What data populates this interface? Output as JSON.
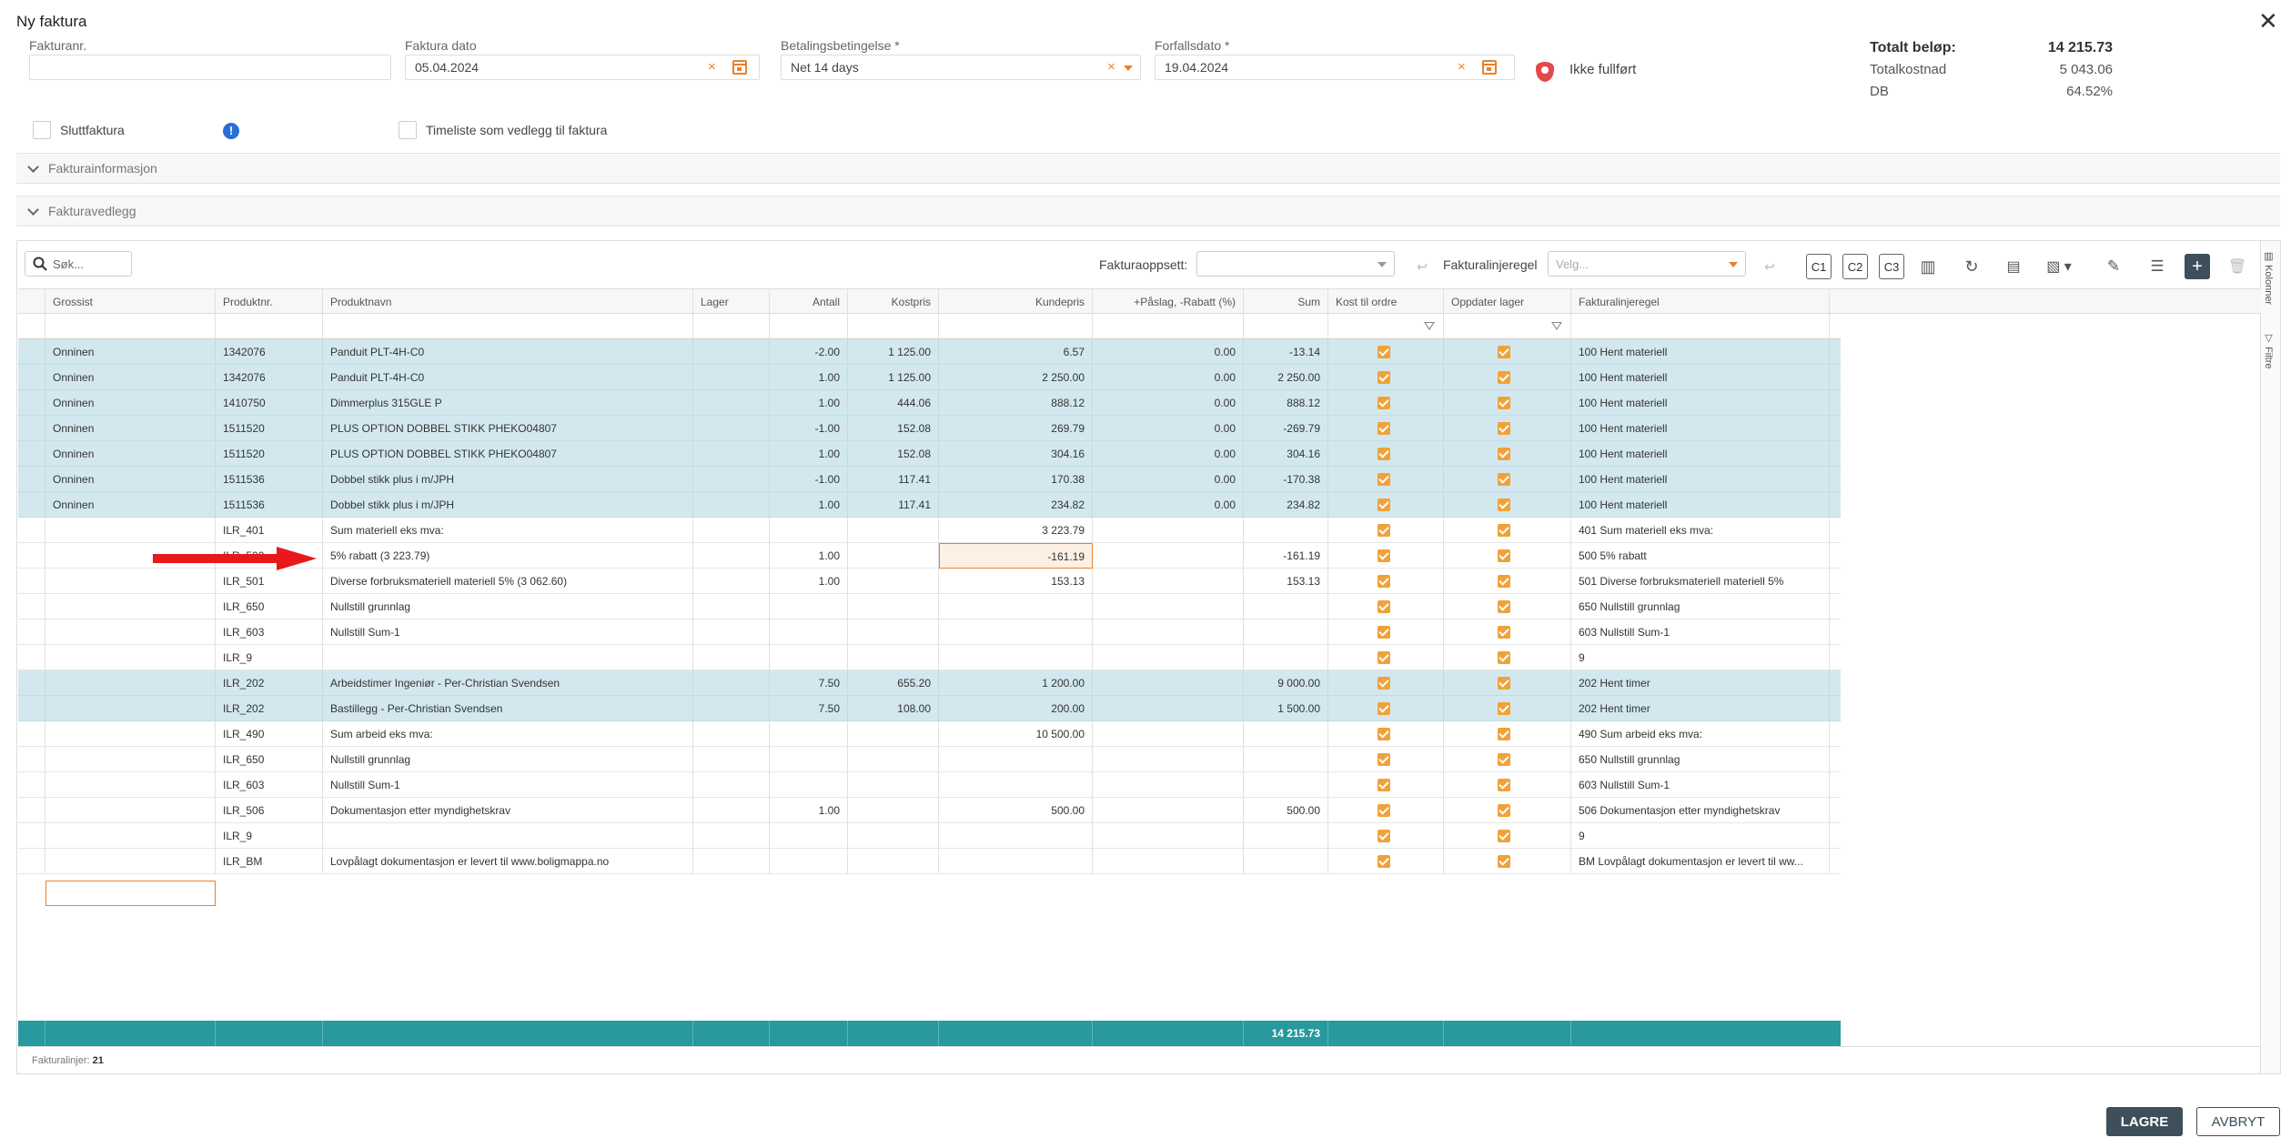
{
  "title": "Ny faktura",
  "fields": {
    "invoice_no_label": "Fakturanr.",
    "invoice_no_value": "",
    "invoice_date_label": "Faktura dato",
    "invoice_date_value": "05.04.2024",
    "payment_terms_label": "Betalingsbetingelse *",
    "payment_terms_value": "Net 14 days",
    "due_date_label": "Forfallsdato *",
    "due_date_value": "19.04.2024",
    "status_text": "Ikke fullført"
  },
  "totals": {
    "total_label": "Totalt beløp:",
    "total_value": "14 215.73",
    "cost_label": "Totalkostnad",
    "cost_value": "5 043.06",
    "db_label": "DB",
    "db_value": "64.52%"
  },
  "options": {
    "final_invoice_label": "Sluttfaktura",
    "info_glyph": "!",
    "timesheet_label": "Timeliste som vedlegg til faktura"
  },
  "sections": {
    "invoice_info": "Fakturainformasjon",
    "attachments": "Fakturavedlegg"
  },
  "toolbar": {
    "search_placeholder": "Søk...",
    "setup_label": "Fakturaoppsett:",
    "rule_label": "Fakturalinjeregel",
    "rule_placeholder": "Velg...",
    "c1": "C1",
    "c2": "C2",
    "c3": "C3"
  },
  "side_tabs": {
    "columns": "Kolonner",
    "filters": "Filtre"
  },
  "columns": [
    "Grossist",
    "Produktnr.",
    "Produktnavn",
    "Lager",
    "Antall",
    "Kostpris",
    "Kundepris",
    "+Påslag, -Rabatt (%)",
    "Sum",
    "Kost til ordre",
    "Oppdater lager",
    "Fakturalinjeregel"
  ],
  "rows": [
    {
      "grossist": "Onninen",
      "produktnr": "1342076",
      "navn": "Panduit PLT-4H-C0",
      "antall": "-2.00",
      "kostpris": "1 125.00",
      "kundepris": "6.57",
      "rabatt": "0.00",
      "sum": "-13.14",
      "regel": "100 Hent materiell",
      "hl": true
    },
    {
      "grossist": "Onninen",
      "produktnr": "1342076",
      "navn": "Panduit PLT-4H-C0",
      "antall": "1.00",
      "kostpris": "1 125.00",
      "kundepris": "2 250.00",
      "rabatt": "0.00",
      "sum": "2 250.00",
      "regel": "100 Hent materiell",
      "hl": true
    },
    {
      "grossist": "Onninen",
      "produktnr": "1410750",
      "navn": "Dimmerplus 315GLE P",
      "antall": "1.00",
      "kostpris": "444.06",
      "kundepris": "888.12",
      "rabatt": "0.00",
      "sum": "888.12",
      "regel": "100 Hent materiell",
      "hl": true
    },
    {
      "grossist": "Onninen",
      "produktnr": "1511520",
      "navn": "PLUS OPTION DOBBEL STIKK PHEKO04807",
      "antall": "-1.00",
      "kostpris": "152.08",
      "kundepris": "269.79",
      "rabatt": "0.00",
      "sum": "-269.79",
      "regel": "100 Hent materiell",
      "hl": true
    },
    {
      "grossist": "Onninen",
      "produktnr": "1511520",
      "navn": "PLUS OPTION DOBBEL STIKK PHEKO04807",
      "antall": "1.00",
      "kostpris": "152.08",
      "kundepris": "304.16",
      "rabatt": "0.00",
      "sum": "304.16",
      "regel": "100 Hent materiell",
      "hl": true
    },
    {
      "grossist": "Onninen",
      "produktnr": "1511536",
      "navn": "Dobbel stikk plus i m/JPH",
      "antall": "-1.00",
      "kostpris": "117.41",
      "kundepris": "170.38",
      "rabatt": "0.00",
      "sum": "-170.38",
      "regel": "100 Hent materiell",
      "hl": true
    },
    {
      "grossist": "Onninen",
      "produktnr": "1511536",
      "navn": "Dobbel stikk plus i m/JPH",
      "antall": "1.00",
      "kostpris": "117.41",
      "kundepris": "234.82",
      "rabatt": "0.00",
      "sum": "234.82",
      "regel": "100 Hent materiell",
      "hl": true
    },
    {
      "grossist": "",
      "produktnr": "ILR_401",
      "navn": "Sum materiell eks mva:",
      "antall": "",
      "kostpris": "",
      "kundepris": "3 223.79",
      "rabatt": "",
      "sum": "",
      "regel": "401 Sum materiell eks mva:",
      "hl": false
    },
    {
      "grossist": "",
      "produktnr": "ILR_500",
      "navn": "5% rabatt (3 223.79)",
      "antall": "1.00",
      "kostpris": "",
      "kundepris": "-161.19",
      "rabatt": "",
      "sum": "-161.19",
      "regel": "500 5% rabatt",
      "hl": false,
      "sel": true
    },
    {
      "grossist": "",
      "produktnr": "ILR_501",
      "navn": "Diverse forbruksmateriell materiell 5% (3 062.60)",
      "antall": "1.00",
      "kostpris": "",
      "kundepris": "153.13",
      "rabatt": "",
      "sum": "153.13",
      "regel": "501 Diverse forbruksmateriell materiell 5%",
      "hl": false
    },
    {
      "grossist": "",
      "produktnr": "ILR_650",
      "navn": "Nullstill grunnlag",
      "antall": "",
      "kostpris": "",
      "kundepris": "",
      "rabatt": "",
      "sum": "",
      "regel": "650 Nullstill grunnlag",
      "hl": false
    },
    {
      "grossist": "",
      "produktnr": "ILR_603",
      "navn": "Nullstill Sum-1",
      "antall": "",
      "kostpris": "",
      "kundepris": "",
      "rabatt": "",
      "sum": "",
      "regel": "603 Nullstill Sum-1",
      "hl": false
    },
    {
      "grossist": "",
      "produktnr": "ILR_9",
      "navn": "",
      "antall": "",
      "kostpris": "",
      "kundepris": "",
      "rabatt": "",
      "sum": "",
      "regel": "9",
      "hl": false
    },
    {
      "grossist": "",
      "produktnr": "ILR_202",
      "navn": "Arbeidstimer Ingeniør - Per-Christian Svendsen",
      "antall": "7.50",
      "kostpris": "655.20",
      "kundepris": "1 200.00",
      "rabatt": "",
      "sum": "9 000.00",
      "regel": "202 Hent timer",
      "hl": true
    },
    {
      "grossist": "",
      "produktnr": "ILR_202",
      "navn": "Bastillegg - Per-Christian Svendsen",
      "antall": "7.50",
      "kostpris": "108.00",
      "kundepris": "200.00",
      "rabatt": "",
      "sum": "1 500.00",
      "regel": "202 Hent timer",
      "hl": true
    },
    {
      "grossist": "",
      "produktnr": "ILR_490",
      "navn": "Sum arbeid eks mva:",
      "antall": "",
      "kostpris": "",
      "kundepris": "10 500.00",
      "rabatt": "",
      "sum": "",
      "regel": "490 Sum arbeid eks mva:",
      "hl": false
    },
    {
      "grossist": "",
      "produktnr": "ILR_650",
      "navn": "Nullstill grunnlag",
      "antall": "",
      "kostpris": "",
      "kundepris": "",
      "rabatt": "",
      "sum": "",
      "regel": "650 Nullstill grunnlag",
      "hl": false
    },
    {
      "grossist": "",
      "produktnr": "ILR_603",
      "navn": "Nullstill Sum-1",
      "antall": "",
      "kostpris": "",
      "kundepris": "",
      "rabatt": "",
      "sum": "",
      "regel": "603 Nullstill Sum-1",
      "hl": false
    },
    {
      "grossist": "",
      "produktnr": "ILR_506",
      "navn": "Dokumentasjon etter myndighetskrav",
      "antall": "1.00",
      "kostpris": "",
      "kundepris": "500.00",
      "rabatt": "",
      "sum": "500.00",
      "regel": "506 Dokumentasjon etter myndighetskrav",
      "hl": false
    },
    {
      "grossist": "",
      "produktnr": "ILR_9",
      "navn": "",
      "antall": "",
      "kostpris": "",
      "kundepris": "",
      "rabatt": "",
      "sum": "",
      "regel": "9",
      "hl": false
    },
    {
      "grossist": "",
      "produktnr": "ILR_BM",
      "navn": "Lovpålagt dokumentasjon er levert til www.boligmappa.no",
      "antall": "",
      "kostpris": "",
      "kundepris": "",
      "rabatt": "",
      "sum": "",
      "regel": "BM Lovpålagt dokumentasjon er levert til ww...",
      "hl": false
    }
  ],
  "footer_sum": "14 215.73",
  "line_count_label": "Fakturalinjer:",
  "line_count": "21",
  "buttons": {
    "save": "LAGRE",
    "cancel": "AVBRYT"
  },
  "colors": {
    "accent": "#e8812b",
    "row_highlight": "#d3e8ee",
    "footer_bar": "#27999f",
    "primary_button": "#3d4f5a"
  }
}
